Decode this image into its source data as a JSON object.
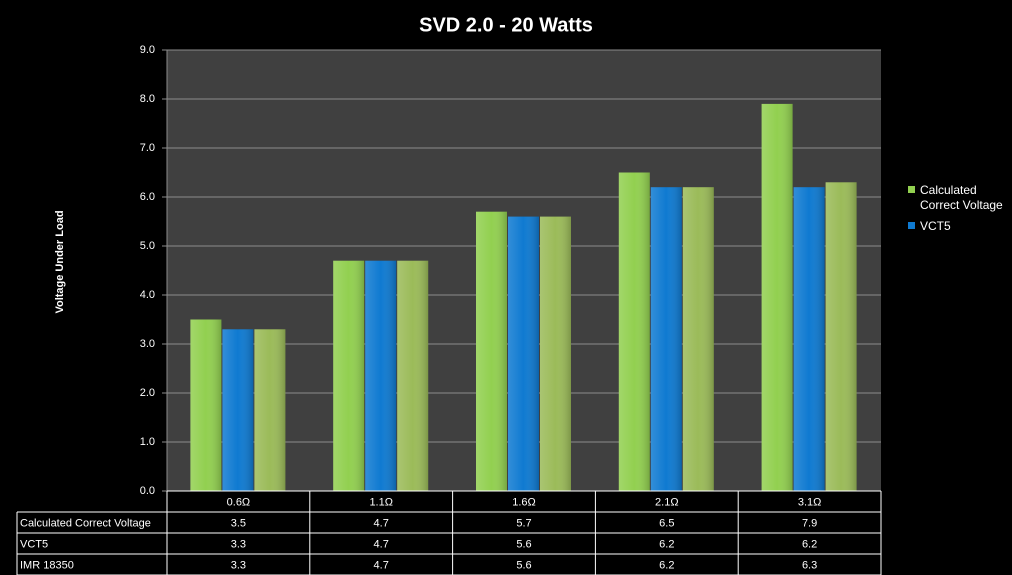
{
  "chart_data": {
    "type": "bar",
    "title": "SVD 2.0 - 20 Watts",
    "y_label": "Voltage Under Load",
    "categories": [
      "0.6Ω",
      "1.1Ω",
      "1.6Ω",
      "2.1Ω",
      "3.1Ω"
    ],
    "series": [
      {
        "name": "Calculated Correct Voltage",
        "color": "#92d050",
        "values": [
          3.5,
          4.7,
          5.7,
          6.5,
          7.9
        ],
        "in_legend": true
      },
      {
        "name": "VCT5",
        "color": "#0f7ad1",
        "values": [
          3.3,
          4.7,
          5.6,
          6.2,
          6.2
        ],
        "in_legend": true
      },
      {
        "name": "IMR 18350",
        "color": "#9bbb59",
        "values": [
          3.3,
          4.7,
          5.6,
          6.2,
          6.3
        ],
        "in_legend": false
      }
    ],
    "ylim": [
      0,
      9
    ],
    "yticks": [
      {
        "value": 0,
        "label": "0.0"
      },
      {
        "value": 1,
        "label": "1.0"
      },
      {
        "value": 2,
        "label": "2.0"
      },
      {
        "value": 3,
        "label": "3.0"
      },
      {
        "value": 4,
        "label": "4.0"
      },
      {
        "value": 5,
        "label": "5.0"
      },
      {
        "value": 6,
        "label": "6.0"
      },
      {
        "value": 7,
        "label": "7.0"
      },
      {
        "value": 8,
        "label": "8.0"
      },
      {
        "value": 9,
        "label": "9.0"
      }
    ],
    "grid": true,
    "legend": "right",
    "data_table": true
  }
}
